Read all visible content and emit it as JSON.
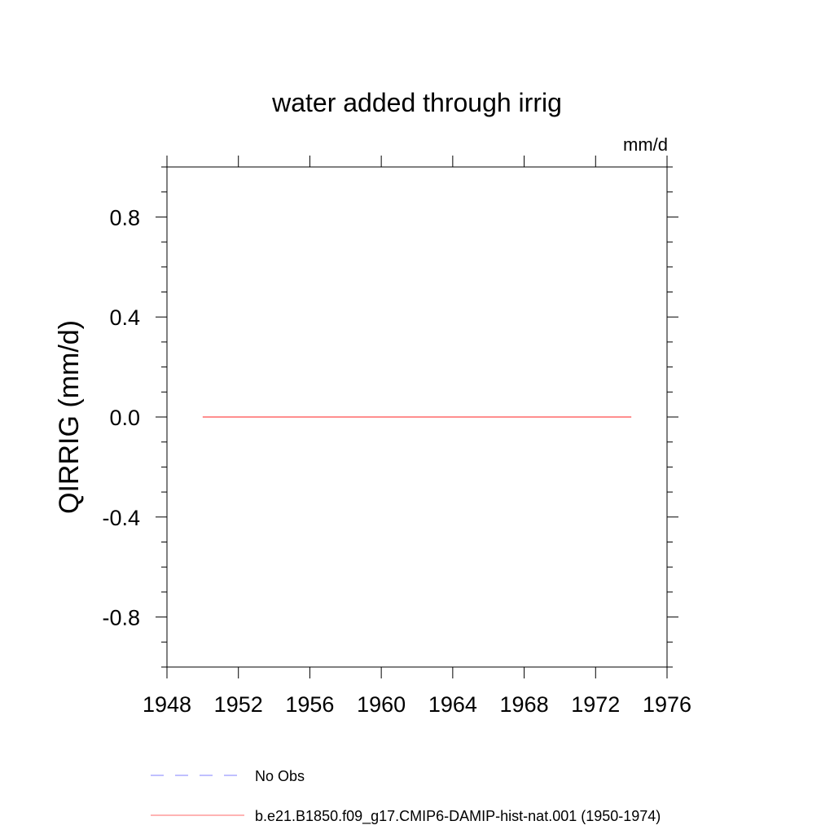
{
  "chart_data": {
    "type": "line",
    "title": "water added through irrig",
    "units_label": "mm/d",
    "ylabel": "QIRRIG  (mm/d)",
    "xlabel": "",
    "xlim": [
      1948,
      1976
    ],
    "ylim": [
      -1.0,
      1.0
    ],
    "x_ticks": [
      1948,
      1952,
      1956,
      1960,
      1964,
      1968,
      1972,
      1976
    ],
    "x_tick_labels": [
      "1948",
      "1952",
      "1956",
      "1960",
      "1964",
      "1968",
      "1972",
      "1976"
    ],
    "y_ticks": [
      -0.8,
      -0.4,
      0.0,
      0.4,
      0.8
    ],
    "y_tick_labels": [
      "-0.8",
      "-0.4",
      "0.0",
      "0.4",
      "0.8"
    ],
    "grid": false,
    "legend_placement": "bottom",
    "series": [
      {
        "name": "No Obs",
        "color": "#8080ff",
        "dash": "dashed",
        "x": [],
        "y": []
      },
      {
        "name": "b.e21.B1850.f09_g17.CMIP6-DAMIP-hist-nat.001 (1950-1974)",
        "color": "#ff6a6a",
        "dash": "solid",
        "x": [
          1950,
          1974
        ],
        "y": [
          0.0,
          0.0
        ]
      }
    ]
  }
}
